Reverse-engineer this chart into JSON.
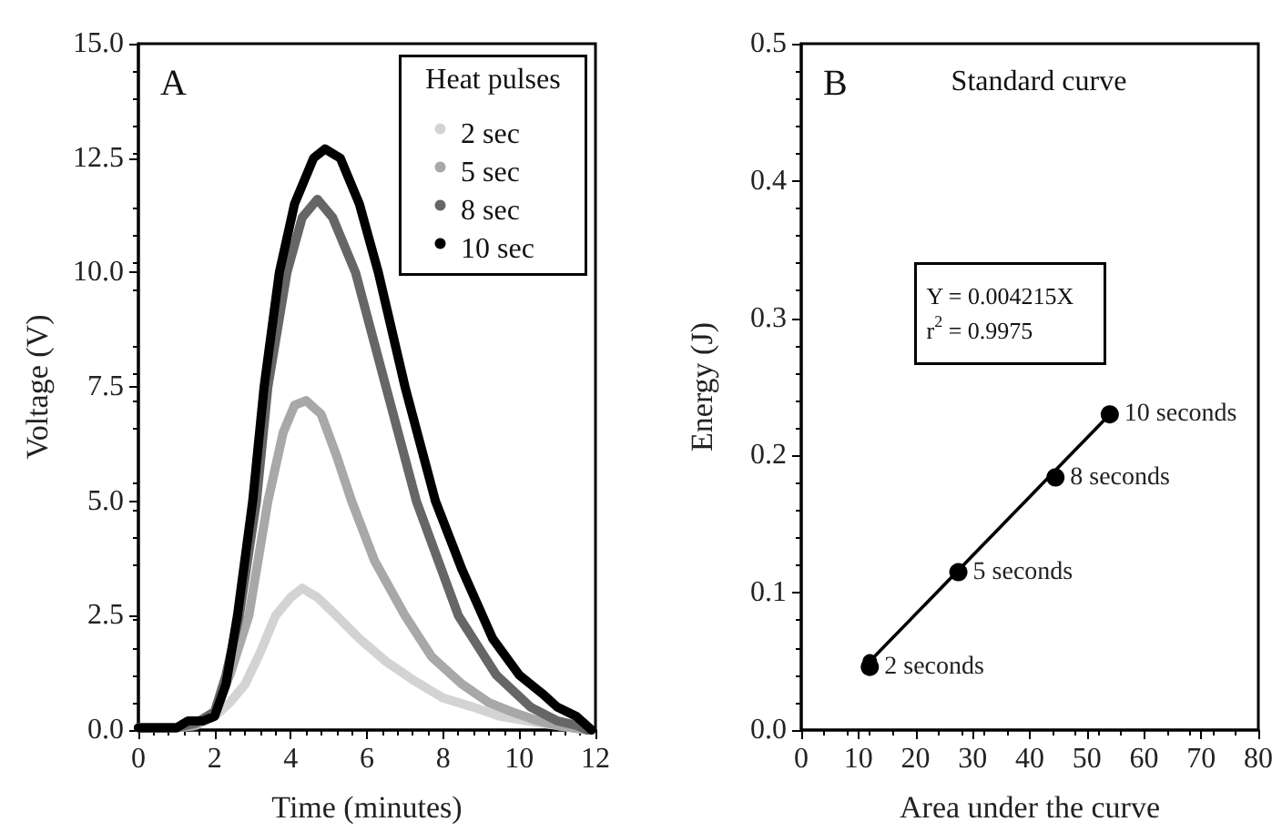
{
  "chart_data": [
    {
      "type": "line",
      "xlabel": "Time (minutes)",
      "ylabel": "Voltage (V)",
      "legend_title": "Heat pulses",
      "legend": "top right",
      "marker": "none",
      "line_style": "solid",
      "grid": false,
      "xlim": [
        0,
        12
      ],
      "xticks": [
        0,
        2,
        4,
        6,
        8,
        10,
        12
      ],
      "ylim": [
        0,
        15
      ],
      "yticks": [
        {
          "value": 0,
          "label": "0.0"
        },
        {
          "value": 2.5,
          "label": "2.5"
        },
        {
          "value": 5,
          "label": "5.0"
        },
        {
          "value": 7.5,
          "label": "7.5"
        },
        {
          "value": 10,
          "label": "10.0"
        },
        {
          "value": 12.5,
          "label": "12.5"
        },
        {
          "value": 15,
          "label": "15.0"
        }
      ],
      "annotations": [
        "A"
      ],
      "series": [
        {
          "name": "2 sec",
          "color": "#d3d3d3",
          "x": [
            0,
            1,
            1.5,
            2,
            2.4,
            2.8,
            3.2,
            3.6,
            4,
            4.3,
            4.7,
            5.2,
            5.8,
            6.5,
            7.2,
            8,
            8.8,
            9.5,
            10.2,
            11,
            11.8
          ],
          "values": [
            0.05,
            0.05,
            0.1,
            0.3,
            0.6,
            1,
            1.7,
            2.5,
            2.9,
            3.1,
            2.9,
            2.5,
            2,
            1.5,
            1.1,
            0.7,
            0.5,
            0.3,
            0.2,
            0.1,
            0
          ]
        },
        {
          "name": "5 sec",
          "color": "#a8a8a8",
          "x": [
            0,
            1,
            1.5,
            2,
            2.4,
            2.9,
            3.4,
            3.8,
            4.1,
            4.4,
            4.8,
            5.2,
            5.6,
            6.2,
            7,
            7.7,
            8.5,
            9.2,
            9.8,
            10.5,
            11,
            11.8
          ],
          "values": [
            0.05,
            0.05,
            0.1,
            0.4,
            1.2,
            2.5,
            5,
            6.5,
            7.1,
            7.2,
            6.9,
            6,
            5,
            3.7,
            2.5,
            1.6,
            1,
            0.6,
            0.4,
            0.2,
            0.1,
            0
          ]
        },
        {
          "name": "8 sec",
          "color": "#666666",
          "x": [
            0,
            1,
            1.5,
            2,
            2.3,
            2.65,
            3.1,
            3.4,
            3.9,
            4.3,
            4.7,
            5.1,
            5.7,
            6.5,
            7.3,
            8.4,
            9.4,
            10.3,
            11,
            11.5,
            11.8
          ],
          "values": [
            0.05,
            0.05,
            0.15,
            0.4,
            1.2,
            2.5,
            5,
            7.5,
            10,
            11.2,
            11.6,
            11.2,
            10,
            7.5,
            5,
            2.5,
            1.2,
            0.5,
            0.2,
            0.1,
            0
          ]
        },
        {
          "name": "10 sec",
          "color": "#000000",
          "x": [
            0,
            1,
            1.3,
            1.7,
            2,
            2.3,
            2.6,
            3,
            3.3,
            3.7,
            4.1,
            4.6,
            4.9,
            5.3,
            5.8,
            6.3,
            7,
            7.8,
            8.5,
            9.3,
            10,
            10.6,
            11,
            11.5,
            11.9
          ],
          "values": [
            0.05,
            0.05,
            0.2,
            0.2,
            0.3,
            1,
            2.5,
            5,
            7.5,
            10,
            11.5,
            12.5,
            12.7,
            12.5,
            11.5,
            10,
            7.5,
            5,
            3.5,
            2,
            1.2,
            0.8,
            0.5,
            0.3,
            0
          ]
        }
      ]
    },
    {
      "type": "scatter",
      "title": "Standard curve",
      "xlabel": "Area under the curve",
      "ylabel": "Energy (J)",
      "marker": "circle",
      "grid": false,
      "legend": false,
      "xlim": [
        0,
        80
      ],
      "xticks": [
        0,
        10,
        20,
        30,
        40,
        50,
        60,
        70,
        80
      ],
      "ylim": [
        0,
        0.5
      ],
      "yticks": [
        {
          "value": 0,
          "label": "0.0"
        },
        {
          "value": 0.1,
          "label": "0.1"
        },
        {
          "value": 0.2,
          "label": "0.2"
        },
        {
          "value": 0.3,
          "label": "0.3"
        },
        {
          "value": 0.4,
          "label": "0.4"
        },
        {
          "value": 0.5,
          "label": "0.5"
        }
      ],
      "annotations": [
        "B",
        "Y = 0.004215X\nr$^{2}$ = 0.9975",
        {
          "text": "2 seconds",
          "x": 12,
          "y": 0.046
        },
        {
          "text": "5 seconds",
          "x": 27.5,
          "y": 0.115
        },
        {
          "text": "8 seconds",
          "x": 44.5,
          "y": 0.184
        },
        {
          "text": "10 seconds",
          "x": 54,
          "y": 0.23
        }
      ],
      "series": [
        {
          "color": "#000000",
          "x": [
            12,
            27.5,
            44.5,
            54
          ],
          "values": [
            0.046,
            0.115,
            0.184,
            0.23
          ]
        },
        {
          "type": "line",
          "color": "#000000",
          "x": [
            12,
            54
          ],
          "values": [
            0.05,
            0.23
          ]
        }
      ]
    }
  ]
}
